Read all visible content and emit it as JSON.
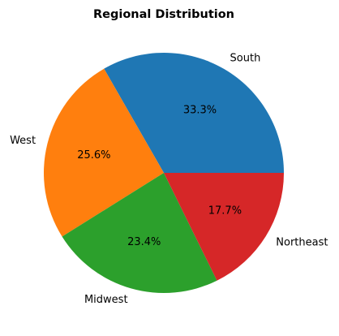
{
  "chart_data": {
    "type": "pie",
    "title": "Regional Distribution",
    "slices": [
      {
        "label": "South",
        "value": 33.3,
        "pct_label": "33.3%",
        "color": "#1f77b4"
      },
      {
        "label": "West",
        "value": 25.6,
        "pct_label": "25.6%",
        "color": "#ff7f0e"
      },
      {
        "label": "Midwest",
        "value": 23.4,
        "pct_label": "23.4%",
        "color": "#2ca02c"
      },
      {
        "label": "Northeast",
        "value": 17.7,
        "pct_label": "17.7%",
        "color": "#d62728"
      }
    ],
    "start_angle_deg": 0,
    "direction": "counterclockwise",
    "legend": "none",
    "grid": false
  }
}
